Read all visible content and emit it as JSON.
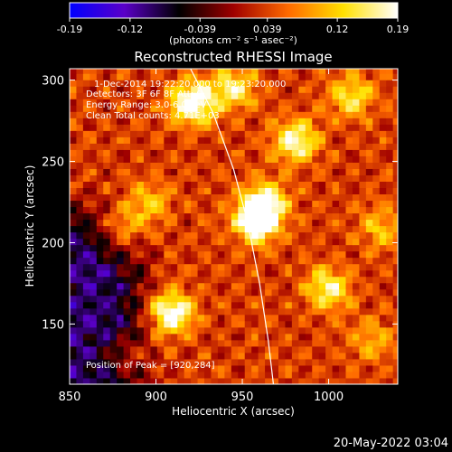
{
  "colorbar": {
    "tick_labels": [
      "-0.19",
      "-0.12",
      "-0.039",
      "0.039",
      "0.12",
      "0.19"
    ],
    "tick_values": [
      -0.19,
      -0.12,
      -0.039,
      0.039,
      0.12,
      0.19
    ],
    "range": [
      -0.19,
      0.19
    ],
    "unit_label": "(photons cm⁻² s⁻¹ asec⁻²)",
    "colormap_stops": [
      "#0000ff",
      "#5a00c8",
      "#000000",
      "#a00000",
      "#ff6a00",
      "#ffe000",
      "#ffffff"
    ]
  },
  "chart_data": {
    "type": "heatmap",
    "title": "Reconstructed RHESSI Image",
    "xlabel": "Heliocentric X (arcsec)",
    "ylabel": "Heliocentric Y (arcsec)",
    "xlim": [
      850,
      1040
    ],
    "ylim": [
      113,
      307
    ],
    "x_ticks": [
      850,
      900,
      950,
      1000
    ],
    "y_ticks": [
      150,
      200,
      250,
      300
    ],
    "x_tick_labels": [
      "850",
      "900",
      "950",
      "1000"
    ],
    "y_tick_labels": [
      "150",
      "200",
      "250",
      "300"
    ],
    "annotations": {
      "time": "1-Dec-2014 19:22:20.000 to 19:23:20.000",
      "detectors": "Detectors: 3F 6F 8F  Att: 0",
      "energy": "Energy Range: 3.0-6.0 keV",
      "clean": "Clean     Total counts: 4.71E+03",
      "peak": "Position of Peak = [920,284]"
    },
    "peak_position": [
      920,
      284
    ],
    "sources": [
      {
        "x": 921,
        "y": 286,
        "intensity": 0.19
      },
      {
        "x": 958,
        "y": 213,
        "intensity": 0.19
      },
      {
        "x": 963,
        "y": 225,
        "intensity": 0.15
      },
      {
        "x": 909,
        "y": 157,
        "intensity": 0.17
      },
      {
        "x": 981,
        "y": 263,
        "intensity": 0.15
      },
      {
        "x": 1000,
        "y": 172,
        "intensity": 0.13
      },
      {
        "x": 945,
        "y": 295,
        "intensity": 0.12
      },
      {
        "x": 1013,
        "y": 290,
        "intensity": 0.11
      },
      {
        "x": 882,
        "y": 210,
        "intensity": 0.09
      },
      {
        "x": 896,
        "y": 225,
        "intensity": 0.08
      },
      {
        "x": 1030,
        "y": 210,
        "intensity": 0.08
      },
      {
        "x": 880,
        "y": 130,
        "intensity": 0.07
      },
      {
        "x": 1025,
        "y": 140,
        "intensity": 0.07
      }
    ],
    "negative_region": {
      "x": 870,
      "y": 175,
      "intensity": -0.13
    },
    "limb_curve": [
      [
        920,
        307
      ],
      [
        933,
        280
      ],
      [
        945,
        245
      ],
      [
        953,
        213
      ],
      [
        960,
        175
      ],
      [
        965,
        140
      ],
      [
        968,
        113
      ]
    ]
  },
  "footer_date": "20-May-2022 03:04"
}
